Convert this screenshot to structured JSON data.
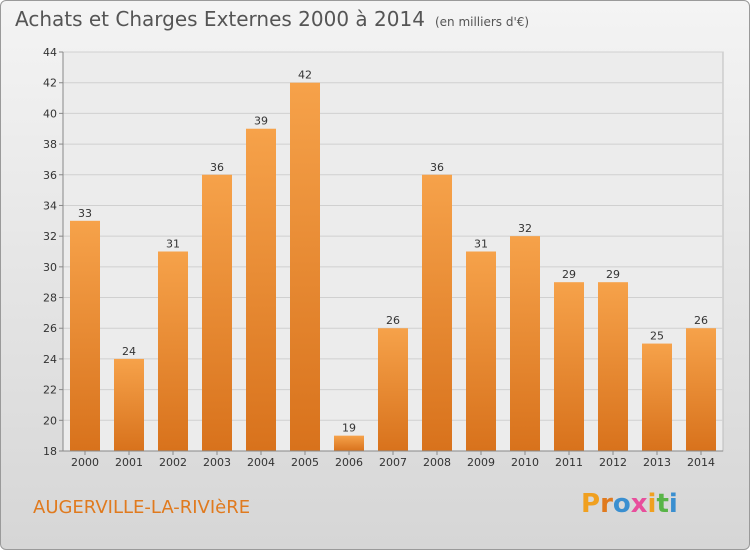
{
  "title": "Achats et Charges Externes 2000 à 2014",
  "unit_note": "(en milliers d'€)",
  "commune": "AUGERVILLE-LA-RIVIèRE",
  "logo_text": "Proxiti",
  "colors": {
    "bar_light": "#f6a24a",
    "bar_dark": "#d8721c",
    "title": "#555555",
    "commune": "#e07a1e",
    "logo_letters": [
      "#f0a020",
      "#e07a1e",
      "#3a8fd0",
      "#e84e9c",
      "#f0a020",
      "#58b447",
      "#3a8fd0"
    ]
  },
  "chart_data": {
    "type": "bar",
    "categories": [
      "2000",
      "2001",
      "2002",
      "2003",
      "2004",
      "2005",
      "2006",
      "2007",
      "2008",
      "2009",
      "2010",
      "2011",
      "2012",
      "2013",
      "2014"
    ],
    "values": [
      33,
      24,
      31,
      36,
      39,
      42,
      19,
      26,
      36,
      31,
      32,
      29,
      29,
      25,
      26
    ],
    "ylim": [
      18,
      44
    ],
    "yticks": [
      18,
      20,
      22,
      24,
      26,
      28,
      30,
      32,
      34,
      36,
      38,
      40,
      42,
      44
    ],
    "grid": true,
    "legend": "none"
  }
}
